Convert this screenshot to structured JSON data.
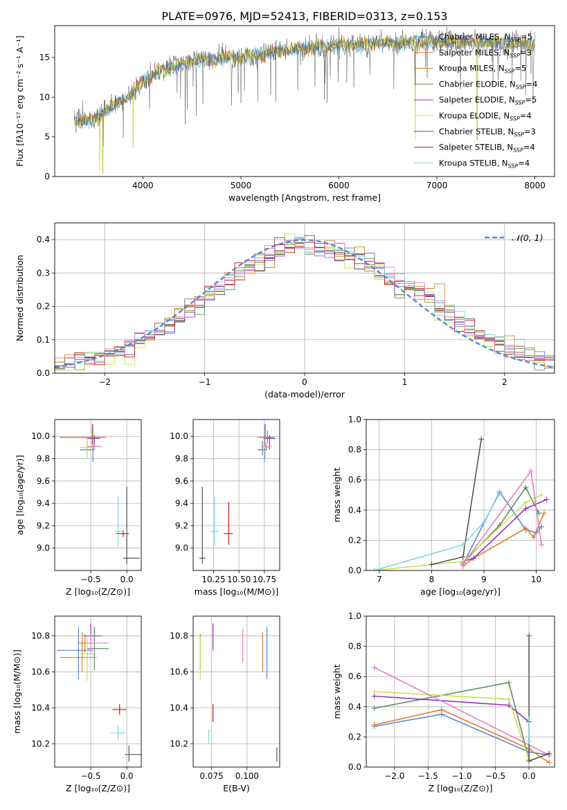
{
  "figure_title": "PLATE=0976, MJD=52413, FIBERID=0313, z=0.153",
  "colors": {
    "Chabrier MILES": "#5b86d0",
    "Salpeter MILES": "#de7a30",
    "Kroupa MILES": "#b8860b",
    "Chabrier ELODIE": "#5f8a5f",
    "Salpeter ELODIE": "#9b30c0",
    "Kroupa ELODIE": "#c8e052",
    "Chabrier STELIB": "#555555",
    "Salpeter STELIB": "#c01818",
    "Kroupa STELIB": "#7fd6dc",
    "pink": "#e27fbf",
    "grid": "#b0b0b0"
  },
  "chart_data": [
    {
      "id": "spectrum",
      "type": "line",
      "xlabel": "wavelength [Angstrom, rest frame]",
      "ylabel": "Flux [fλ10⁻¹⁷ erg cm⁻² s⁻¹ A⁻¹]",
      "xlim": [
        3100,
        8200
      ],
      "ylim": [
        0,
        19
      ],
      "xticks": [
        4000,
        5000,
        6000,
        7000,
        8000
      ],
      "yticks": [
        0,
        5,
        10,
        15
      ],
      "grid": false,
      "legend_position": "top-right",
      "legend": [
        {
          "name": "Chabrier MILES, N",
          "sub": "SSP",
          "tail": "=5",
          "color": "#5b86d0"
        },
        {
          "name": "Salpeter MILES, N",
          "sub": "SSP",
          "tail": "=3",
          "color": "#de7a30"
        },
        {
          "name": "Kroupa MILES, N",
          "sub": "SSP",
          "tail": "=5",
          "color": "#b8860b"
        },
        {
          "name": "Chabrier ELODIE, N",
          "sub": "SSP",
          "tail": "=4",
          "color": "#5f8a5f"
        },
        {
          "name": "Salpeter ELODIE, N",
          "sub": "SSP",
          "tail": "=5",
          "color": "#9b30c0"
        },
        {
          "name": "Kroupa ELODIE, N",
          "sub": "SSP",
          "tail": "=4",
          "color": "#c8e052"
        },
        {
          "name": "Chabrier STELIB, N",
          "sub": "SSP",
          "tail": "=3",
          "color": "#555555"
        },
        {
          "name": "Salpeter STELIB, N",
          "sub": "SSP",
          "tail": "=4",
          "color": "#c01818"
        },
        {
          "name": "Kroupa STELIB, N",
          "sub": "SSP",
          "tail": "=4",
          "color": "#7fd6dc"
        }
      ],
      "continuum": {
        "x": [
          3300,
          3500,
          3700,
          3900,
          4000,
          4200,
          4500,
          5000,
          5500,
          6000,
          6500,
          7000,
          7500,
          8000
        ],
        "y": [
          7.0,
          7.2,
          9.0,
          10.5,
          12.0,
          13.5,
          14.6,
          15.0,
          16.0,
          16.5,
          16.8,
          17.0,
          16.9,
          16.7
        ]
      }
    },
    {
      "id": "residuals",
      "type": "line",
      "xlabel": "(data-model)/error",
      "ylabel": "Normed distribution",
      "xlim": [
        -2.5,
        2.5
      ],
      "ylim": [
        0,
        0.45
      ],
      "xticks": [
        -2,
        -1,
        0,
        1,
        2
      ],
      "yticks": [
        0.0,
        0.1,
        0.2,
        0.3,
        0.4
      ],
      "grid": true,
      "legend_position": "top-right",
      "legend_label": "𝒩(0, 1)",
      "gaussian": {
        "mu": 0,
        "sigma": 1
      }
    },
    {
      "id": "age-vs-Z",
      "type": "scatter",
      "xlabel": "Z [log₁₀(Z/Z⊙)]",
      "ylabel": "age  [log₁₀(age/yr)]",
      "xlim": [
        -1.0,
        0.2
      ],
      "ylim": [
        8.8,
        10.15
      ],
      "xticks": [
        -0.5,
        0.0
      ],
      "yticks": [
        9.0,
        9.2,
        9.4,
        9.6,
        9.8,
        10.0
      ],
      "grid": true,
      "points": [
        {
          "color": "#5b86d0",
          "x": -0.47,
          "xerr": [
            0.45,
            0.15
          ],
          "y": 9.99,
          "yerr": [
            0.22,
            0.12
          ]
        },
        {
          "color": "#de7a30",
          "x": -0.48,
          "xerr": [
            0.45,
            0.2
          ],
          "y": 9.99,
          "yerr": [
            0.06,
            0.12
          ]
        },
        {
          "color": "#b8860b",
          "x": -0.48,
          "xerr": [
            0.1,
            0.1
          ],
          "y": 9.99,
          "yerr": [
            0.05,
            0.06
          ]
        },
        {
          "color": "#5f8a5f",
          "x": -0.55,
          "xerr": [
            0.1,
            0.1
          ],
          "y": 9.88,
          "yerr": [
            0.05,
            0.08
          ]
        },
        {
          "color": "#9b30c0",
          "x": -0.45,
          "xerr": [
            0.1,
            0.08
          ],
          "y": 9.98,
          "yerr": [
            0.1,
            0.03
          ]
        },
        {
          "color": "#c8e052",
          "x": -0.55,
          "xerr": [
            0.1,
            0.1
          ],
          "y": 9.9,
          "yerr": [
            0.1,
            0.08
          ]
        },
        {
          "color": "#e27fbf",
          "x": -0.45,
          "xerr": [
            0.1,
            0.1
          ],
          "y": 9.91,
          "yerr": [
            0.03,
            0.03
          ]
        },
        {
          "color": "#555555",
          "x": 0.0,
          "xerr": [
            0.05,
            0.18
          ],
          "y": 8.91,
          "yerr": [
            0.05,
            0.64
          ]
        },
        {
          "color": "#c01818",
          "x": -0.05,
          "xerr": [
            0.1,
            0.08
          ],
          "y": 9.13,
          "yerr": [
            0.03,
            0.03
          ]
        },
        {
          "color": "#7fd6dc",
          "x": -0.12,
          "xerr": [
            0.05,
            0.05
          ],
          "y": 9.15,
          "yerr": [
            0.13,
            0.31
          ]
        }
      ]
    },
    {
      "id": "age-vs-mass",
      "type": "scatter",
      "xlabel": "mass [log₁₀(M/M⊙)]",
      "ylabel": "",
      "xlim": [
        10.05,
        10.9
      ],
      "ylim": [
        8.8,
        10.15
      ],
      "xticks": [
        10.25,
        10.5,
        10.75
      ],
      "yticks": [
        9.0,
        9.2,
        9.4,
        9.6,
        9.8,
        10.0
      ],
      "grid": true,
      "points": [
        {
          "color": "#5b86d0",
          "x": 10.75,
          "xerr": [
            0.05,
            0.1
          ],
          "y": 9.99,
          "yerr": [
            0.22,
            0.12
          ]
        },
        {
          "color": "#de7a30",
          "x": 10.76,
          "xerr": [
            0.08,
            0.06
          ],
          "y": 9.99,
          "yerr": [
            0.06,
            0.12
          ]
        },
        {
          "color": "#b8860b",
          "x": 10.78,
          "xerr": [
            0.04,
            0.04
          ],
          "y": 9.99,
          "yerr": [
            0.05,
            0.06
          ]
        },
        {
          "color": "#5f8a5f",
          "x": 10.73,
          "xerr": [
            0.05,
            0.05
          ],
          "y": 9.88,
          "yerr": [
            0.05,
            0.08
          ]
        },
        {
          "color": "#9b30c0",
          "x": 10.8,
          "xerr": [
            0.06,
            0.06
          ],
          "y": 9.98,
          "yerr": [
            0.1,
            0.03
          ]
        },
        {
          "color": "#c8e052",
          "x": 10.76,
          "xerr": [
            0.04,
            0.04
          ],
          "y": 9.9,
          "yerr": [
            0.1,
            0.08
          ]
        },
        {
          "color": "#e27fbf",
          "x": 10.77,
          "xerr": [
            0.05,
            0.05
          ],
          "y": 9.91,
          "yerr": [
            0.03,
            0.03
          ]
        },
        {
          "color": "#555555",
          "x": 10.14,
          "xerr": [
            0.03,
            0.03
          ],
          "y": 8.91,
          "yerr": [
            0.05,
            0.64
          ]
        },
        {
          "color": "#c01818",
          "x": 10.4,
          "xerr": [
            0.05,
            0.04
          ],
          "y": 9.13,
          "yerr": [
            0.1,
            0.28
          ]
        },
        {
          "color": "#7fd6dc",
          "x": 10.26,
          "xerr": [
            0.04,
            0.04
          ],
          "y": 9.15,
          "yerr": [
            0.13,
            0.31
          ]
        }
      ]
    },
    {
      "id": "weight-vs-age",
      "type": "line",
      "xlabel": "age  [log₁₀(age/yr)]",
      "ylabel": "mass weight",
      "xlim": [
        6.75,
        10.35
      ],
      "ylim": [
        0,
        1.0
      ],
      "xticks": [
        7,
        8,
        9,
        10
      ],
      "yticks": [
        0.0,
        0.2,
        0.4,
        0.6,
        0.8,
        1.0
      ],
      "grid": true,
      "series": [
        {
          "color": "#5b86d0",
          "x": [
            8.6,
            9.3,
            9.8,
            10.0,
            10.1
          ],
          "y": [
            0.04,
            0.52,
            0.27,
            0.25,
            0.29
          ]
        },
        {
          "color": "#de7a30",
          "x": [
            8.6,
            8.8,
            9.8,
            9.95,
            10.15
          ],
          "y": [
            0.03,
            0.08,
            0.28,
            0.22,
            0.38
          ]
        },
        {
          "color": "#5f8a5f",
          "x": [
            8.6,
            9.3,
            9.8,
            10.05
          ],
          "y": [
            0.05,
            0.3,
            0.55,
            0.38
          ]
        },
        {
          "color": "#9b30c0",
          "x": [
            8.6,
            8.8,
            9.8,
            10.2
          ],
          "y": [
            0.06,
            0.08,
            0.41,
            0.47
          ]
        },
        {
          "color": "#c8e052",
          "x": [
            6.9,
            8.6,
            9.8,
            10.1
          ],
          "y": [
            0.0,
            0.06,
            0.45,
            0.5
          ]
        },
        {
          "color": "#e27fbf",
          "x": [
            8.6,
            9.9,
            10.1
          ],
          "y": [
            0.04,
            0.66,
            0.17
          ]
        },
        {
          "color": "#555555",
          "x": [
            8.0,
            8.6,
            8.95
          ],
          "y": [
            0.04,
            0.09,
            0.87
          ]
        },
        {
          "color": "#7fd6dc",
          "x": [
            6.9,
            8.6,
            9.0,
            9.3
          ],
          "y": [
            0.0,
            0.17,
            0.32,
            0.51
          ]
        }
      ]
    },
    {
      "id": "mass-vs-Z",
      "type": "scatter",
      "xlabel": "Z [log₁₀(Z/Z⊙)]",
      "ylabel": "mass [log₁₀(M/M⊙)]",
      "xlim": [
        -1.0,
        0.2
      ],
      "ylim": [
        10.07,
        10.91
      ],
      "xticks": [
        -0.5,
        0.0
      ],
      "yticks": [
        10.2,
        10.4,
        10.6,
        10.8
      ],
      "grid": true,
      "points": [
        {
          "color": "#5b86d0",
          "x": -0.67,
          "xerr": [
            0.3,
            0.2
          ],
          "y": 10.72,
          "yerr": [
            0.16,
            0.13
          ]
        },
        {
          "color": "#de7a30",
          "x": -0.62,
          "xerr": [
            0.3,
            0.2
          ],
          "y": 10.68,
          "yerr": [
            0.08,
            0.14
          ]
        },
        {
          "color": "#b8860b",
          "x": -0.58,
          "xerr": [
            0.1,
            0.1
          ],
          "y": 10.76,
          "yerr": [
            0.05,
            0.05
          ]
        },
        {
          "color": "#5f8a5f",
          "x": -0.45,
          "xerr": [
            0.1,
            0.2
          ],
          "y": 10.73,
          "yerr": [
            0.12,
            0.12
          ]
        },
        {
          "color": "#9b30c0",
          "x": -0.5,
          "xerr": [
            0.1,
            0.15
          ],
          "y": 10.8,
          "yerr": [
            0.08,
            0.07
          ]
        },
        {
          "color": "#c8e052",
          "x": -0.55,
          "xerr": [
            0.1,
            0.1
          ],
          "y": 10.7,
          "yerr": [
            0.15,
            0.1
          ]
        },
        {
          "color": "#e27fbf",
          "x": -0.5,
          "xerr": [
            0.1,
            0.25
          ],
          "y": 10.76,
          "yerr": [
            0.06,
            0.05
          ]
        },
        {
          "color": "#555555",
          "x": 0.03,
          "xerr": [
            0.06,
            0.18
          ],
          "y": 10.14,
          "yerr": [
            0.04,
            0.05
          ]
        },
        {
          "color": "#c01818",
          "x": -0.1,
          "xerr": [
            0.1,
            0.1
          ],
          "y": 10.39,
          "yerr": [
            0.03,
            0.03
          ]
        },
        {
          "color": "#7fd6dc",
          "x": -0.12,
          "xerr": [
            0.1,
            0.1
          ],
          "y": 10.26,
          "yerr": [
            0.04,
            0.04
          ]
        }
      ]
    },
    {
      "id": "mass-vs-ebv",
      "type": "scatter",
      "xlabel": "E(B-V)",
      "ylabel": "",
      "xlim": [
        0.062,
        0.123
      ],
      "ylim": [
        10.07,
        10.91
      ],
      "xticks": [
        0.075,
        0.1
      ],
      "yticks": [
        10.2,
        10.4,
        10.6,
        10.8
      ],
      "grid": true,
      "points": [
        {
          "color": "#5b86d0",
          "x": 0.114,
          "y": 10.72,
          "yerr": [
            0.16,
            0.13
          ]
        },
        {
          "color": "#de7a30",
          "x": 0.111,
          "y": 10.68,
          "yerr": [
            0.08,
            0.14
          ]
        },
        {
          "color": "#5f8a5f",
          "x": 0.067,
          "y": 10.73,
          "yerr": [
            0.12,
            0.08
          ]
        },
        {
          "color": "#9b30c0",
          "x": 0.076,
          "y": 10.8,
          "yerr": [
            0.08,
            0.07
          ]
        },
        {
          "color": "#c8e052",
          "x": 0.067,
          "y": 10.7,
          "yerr": [
            0.15,
            0.1
          ]
        },
        {
          "color": "#e27fbf",
          "x": 0.097,
          "y": 10.76,
          "yerr": [
            0.11,
            0.08
          ]
        },
        {
          "color": "#555555",
          "x": 0.121,
          "y": 10.14,
          "yerr": [
            0.04,
            0.04
          ]
        },
        {
          "color": "#c01818",
          "x": 0.076,
          "y": 10.37,
          "yerr": [
            0.05,
            0.05
          ]
        },
        {
          "color": "#7fd6dc",
          "x": 0.073,
          "y": 10.24,
          "yerr": [
            0.04,
            0.04
          ]
        }
      ]
    },
    {
      "id": "weight-vs-Z",
      "type": "line",
      "xlabel": "Z [log₁₀(Z/Z⊙)]",
      "ylabel": "mass weight",
      "xlim": [
        -2.42,
        0.38
      ],
      "ylim": [
        0,
        1.0
      ],
      "xticks": [
        -2.0,
        -1.5,
        -1.0,
        -0.5,
        0.0
      ],
      "yticks": [
        0.0,
        0.2,
        0.4,
        0.6,
        0.8,
        1.0
      ],
      "grid": true,
      "series": [
        {
          "color": "#5b86d0",
          "x": [
            -2.3,
            -1.3,
            0.0,
            0.3
          ],
          "y": [
            0.27,
            0.35,
            0.1,
            0.08
          ]
        },
        {
          "color": "#de7a30",
          "x": [
            -2.3,
            -1.3,
            0.0,
            0.3
          ],
          "y": [
            0.28,
            0.38,
            0.12,
            0.03
          ]
        },
        {
          "color": "#5f8a5f",
          "x": [
            -2.3,
            -0.3,
            0.0
          ],
          "y": [
            0.39,
            0.56,
            0.05
          ]
        },
        {
          "color": "#9b30c0",
          "x": [
            -2.3,
            -0.3,
            0.0
          ],
          "y": [
            0.47,
            0.41,
            0.3
          ]
        },
        {
          "color": "#c8e052",
          "x": [
            -2.3,
            -0.3,
            0.0
          ],
          "y": [
            0.5,
            0.45,
            0.05
          ]
        },
        {
          "color": "#e27fbf",
          "x": [
            -2.3,
            0.3
          ],
          "y": [
            0.66,
            0.08
          ]
        },
        {
          "color": "#555555",
          "x": [
            0.0,
            0.0,
            0.3
          ],
          "y": [
            0.87,
            0.04,
            0.09
          ]
        },
        {
          "color": "#7fd6dc",
          "x": [
            0.0,
            0.0
          ],
          "y": [
            0.32,
            0.17
          ]
        }
      ]
    }
  ]
}
